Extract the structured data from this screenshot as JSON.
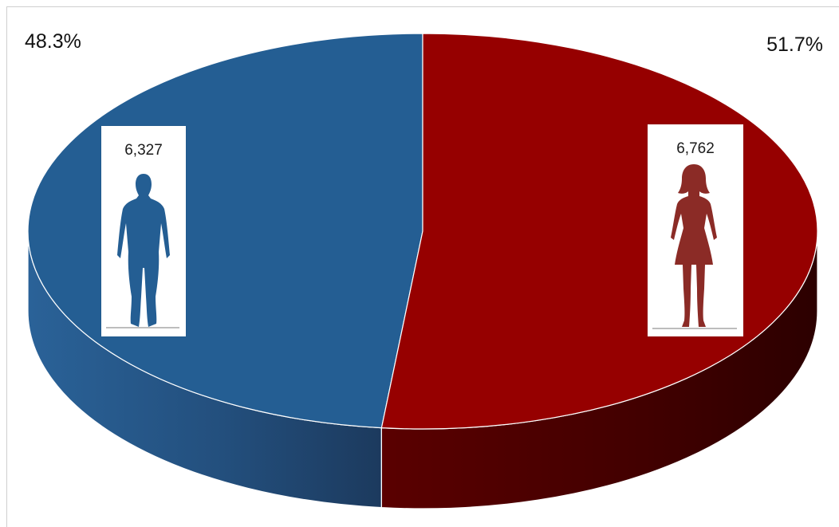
{
  "chart_data": {
    "type": "pie",
    "style": "3d",
    "slices": [
      {
        "label": "male",
        "value": 6327,
        "value_label": "6,327",
        "percent": 48.3,
        "percent_label": "48.3%",
        "color": "#245E93"
      },
      {
        "label": "female",
        "value": 6762,
        "value_label": "6,762",
        "percent": 51.7,
        "percent_label": "51.7%",
        "color": "#960000"
      }
    ],
    "legend": "none",
    "icons": [
      "male-silhouette-icon",
      "female-silhouette-icon"
    ]
  }
}
